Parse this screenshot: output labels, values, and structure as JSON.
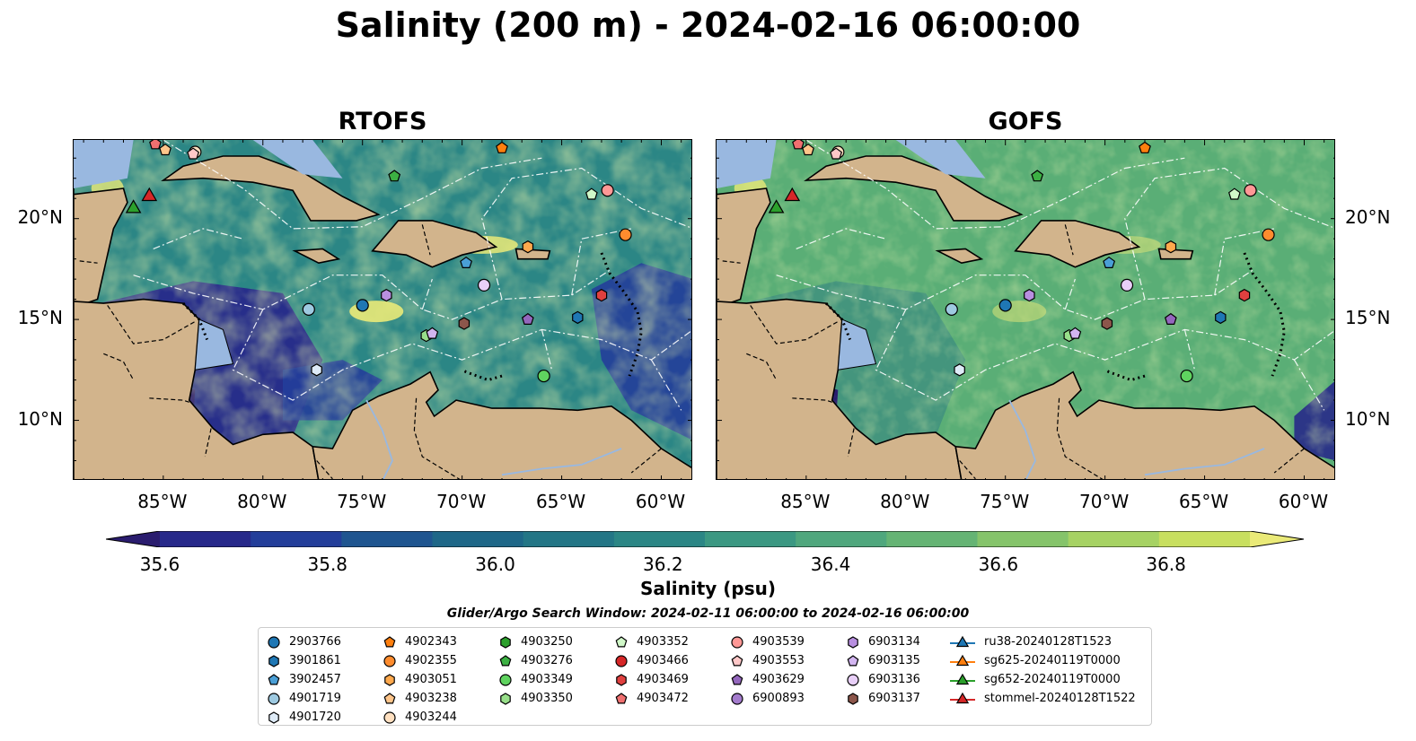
{
  "title": "Salinity (200 m) - 2024-02-16 06:00:00",
  "panels": [
    {
      "title": "RTOFS",
      "id": "rtofs"
    },
    {
      "title": "GOFS",
      "id": "gofs"
    }
  ],
  "lon_ticks": [
    "85°W",
    "80°W",
    "75°W",
    "70°W",
    "65°W",
    "60°W"
  ],
  "lon_values": [
    -85,
    -80,
    -75,
    -70,
    -65,
    -60
  ],
  "lat_ticks": [
    "20°N",
    "15°N",
    "10°N"
  ],
  "lat_values": [
    20,
    15,
    10
  ],
  "map_extent": {
    "lon": [
      -89.5,
      -58.4
    ],
    "lat": [
      7.0,
      23.9
    ]
  },
  "colorbar": {
    "label": "Salinity (psu)",
    "ticks": [
      "35.6",
      "35.8",
      "36.0",
      "36.2",
      "36.4",
      "36.6",
      "36.8"
    ],
    "range": [
      35.6,
      36.9
    ],
    "extend": "both",
    "colors": [
      "#2a1c6e",
      "#27298a",
      "#233e9a",
      "#1f5590",
      "#1e6788",
      "#237686",
      "#2b8685",
      "#3b9882",
      "#4fa77d",
      "#65b474",
      "#85c46a",
      "#a6d263",
      "#c8df5f",
      "#eaea78"
    ]
  },
  "legend_title": "Glider/Argo Search Window: 2024-02-11 06:00:00 to 2024-02-16 06:00:00",
  "legend": [
    {
      "label": "2903766",
      "marker": "circle",
      "color": "#1f77b4"
    },
    {
      "label": "3901861",
      "marker": "hexagon",
      "color": "#1f77b4"
    },
    {
      "label": "3902457",
      "marker": "pentagon",
      "color": "#4a9fd6"
    },
    {
      "label": "4901719",
      "marker": "circle",
      "color": "#9ecae1"
    },
    {
      "label": "4901720",
      "marker": "hexagon",
      "color": "#deebf7"
    },
    {
      "label": "4902343",
      "marker": "pentagon",
      "color": "#ff7f0e"
    },
    {
      "label": "4902355",
      "marker": "circle",
      "color": "#ff8c2e"
    },
    {
      "label": "4903051",
      "marker": "hexagon",
      "color": "#ffa94d"
    },
    {
      "label": "4903238",
      "marker": "pentagon",
      "color": "#ffc58a"
    },
    {
      "label": "4903244",
      "marker": "circle",
      "color": "#ffe0c0"
    },
    {
      "label": "4903250",
      "marker": "hexagon",
      "color": "#2ca02c"
    },
    {
      "label": "4903276",
      "marker": "pentagon",
      "color": "#3cb043"
    },
    {
      "label": "4903349",
      "marker": "circle",
      "color": "#5fd35f"
    },
    {
      "label": "4903350",
      "marker": "hexagon",
      "color": "#98df8a"
    },
    {
      "label": "4903352",
      "marker": "pentagon",
      "color": "#d0f8c8"
    },
    {
      "label": "4903466",
      "marker": "circle",
      "color": "#d62728"
    },
    {
      "label": "4903469",
      "marker": "hexagon",
      "color": "#e0403f"
    },
    {
      "label": "4903472",
      "marker": "pentagon",
      "color": "#f07070"
    },
    {
      "label": "4903539",
      "marker": "circle",
      "color": "#ff9896"
    },
    {
      "label": "4903553",
      "marker": "pentagon",
      "color": "#ffc8c8"
    },
    {
      "label": "4903629",
      "marker": "pentagon",
      "color": "#9467bd"
    },
    {
      "label": "6900893",
      "marker": "circle",
      "color": "#a47ccd"
    },
    {
      "label": "6903134",
      "marker": "hexagon",
      "color": "#b88fe0"
    },
    {
      "label": "6903135",
      "marker": "pentagon",
      "color": "#d2b5f0"
    },
    {
      "label": "6903136",
      "marker": "circle",
      "color": "#e8cff8"
    },
    {
      "label": "6903137",
      "marker": "hexagon",
      "color": "#8c564b"
    },
    {
      "label": "ru38-20240128T1523",
      "marker": "triangle-line",
      "color": "#1f77b4"
    },
    {
      "label": "sg625-20240119T0000",
      "marker": "triangle-line",
      "color": "#ff7f0e"
    },
    {
      "label": "sg652-20240119T0000",
      "marker": "triangle-line",
      "color": "#2ca02c"
    },
    {
      "label": "stommel-20240128T1522",
      "marker": "triangle-line",
      "color": "#d62728"
    }
  ],
  "stations": [
    {
      "lon": -75.0,
      "lat": 15.7,
      "marker": "circle",
      "color": "#1f77b4"
    },
    {
      "lon": -64.2,
      "lat": 15.1,
      "marker": "hexagon",
      "color": "#1f77b4"
    },
    {
      "lon": -69.8,
      "lat": 17.8,
      "marker": "pentagon",
      "color": "#4a9fd6"
    },
    {
      "lon": -77.7,
      "lat": 15.5,
      "marker": "circle",
      "color": "#9ecae1"
    },
    {
      "lon": -77.3,
      "lat": 12.5,
      "marker": "hexagon",
      "color": "#deebf7"
    },
    {
      "lon": -68.0,
      "lat": 23.5,
      "marker": "pentagon",
      "color": "#ff7f0e"
    },
    {
      "lon": -61.8,
      "lat": 19.2,
      "marker": "circle",
      "color": "#ff8c2e"
    },
    {
      "lon": -66.7,
      "lat": 18.6,
      "marker": "hexagon",
      "color": "#ffa94d"
    },
    {
      "lon": -84.9,
      "lat": 23.4,
      "marker": "pentagon",
      "color": "#ffc58a"
    },
    {
      "lon": -83.4,
      "lat": 23.3,
      "marker": "circle",
      "color": "#ffe0c0"
    },
    {
      "lon": -73.4,
      "lat": 22.1,
      "marker": "pentagon",
      "color": "#3cb043"
    },
    {
      "lon": -65.9,
      "lat": 12.2,
      "marker": "circle",
      "color": "#5fd35f"
    },
    {
      "lon": -71.8,
      "lat": 14.2,
      "marker": "hexagon",
      "color": "#98df8a"
    },
    {
      "lon": -63.5,
      "lat": 21.2,
      "marker": "pentagon",
      "color": "#d0f8c8"
    },
    {
      "lon": -63.0,
      "lat": 16.2,
      "marker": "hexagon",
      "color": "#e0403f"
    },
    {
      "lon": -85.4,
      "lat": 23.7,
      "marker": "pentagon",
      "color": "#f07070"
    },
    {
      "lon": -62.7,
      "lat": 21.4,
      "marker": "circle",
      "color": "#ff9896"
    },
    {
      "lon": -83.5,
      "lat": 23.2,
      "marker": "pentagon",
      "color": "#ffc8c8"
    },
    {
      "lon": -66.7,
      "lat": 15.0,
      "marker": "pentagon",
      "color": "#9467bd"
    },
    {
      "lon": -73.8,
      "lat": 16.2,
      "marker": "hexagon",
      "color": "#b88fe0"
    },
    {
      "lon": -71.5,
      "lat": 14.3,
      "marker": "pentagon",
      "color": "#d2b5f0"
    },
    {
      "lon": -68.9,
      "lat": 16.7,
      "marker": "circle",
      "color": "#e8cff8"
    },
    {
      "lon": -69.9,
      "lat": 14.8,
      "marker": "hexagon",
      "color": "#8c564b"
    },
    {
      "lon": -85.7,
      "lat": 21.1,
      "marker": "triangle",
      "color": "#d62728"
    },
    {
      "lon": -86.5,
      "lat": 20.5,
      "marker": "triangle",
      "color": "#2ca02c"
    }
  ]
}
